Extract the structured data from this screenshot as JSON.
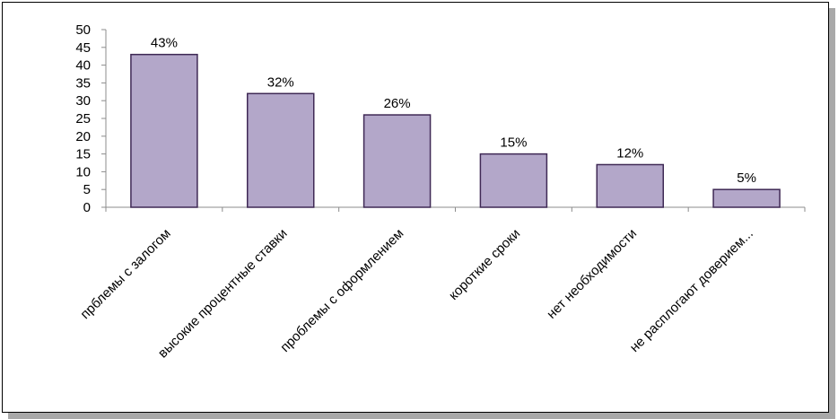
{
  "chart_data": {
    "type": "bar",
    "categories": [
      "пpблемы с залогом",
      "высокие процентные ставки",
      "проблемы с оформлением",
      "короткие сроки",
      "нет необходимости",
      "не расплогают доверием..."
    ],
    "values": [
      43,
      32,
      26,
      15,
      12,
      5
    ],
    "data_labels": [
      "43%",
      "32%",
      "26%",
      "15%",
      "12%",
      "5%"
    ],
    "ylim": [
      0,
      50
    ],
    "yticks": [
      0,
      5,
      10,
      15,
      20,
      25,
      30,
      35,
      40,
      45,
      50
    ],
    "title": "",
    "xlabel": "",
    "ylabel": "",
    "grid": false,
    "bar_fill": "#b3a7c9",
    "bar_stroke": "#3f2955"
  }
}
